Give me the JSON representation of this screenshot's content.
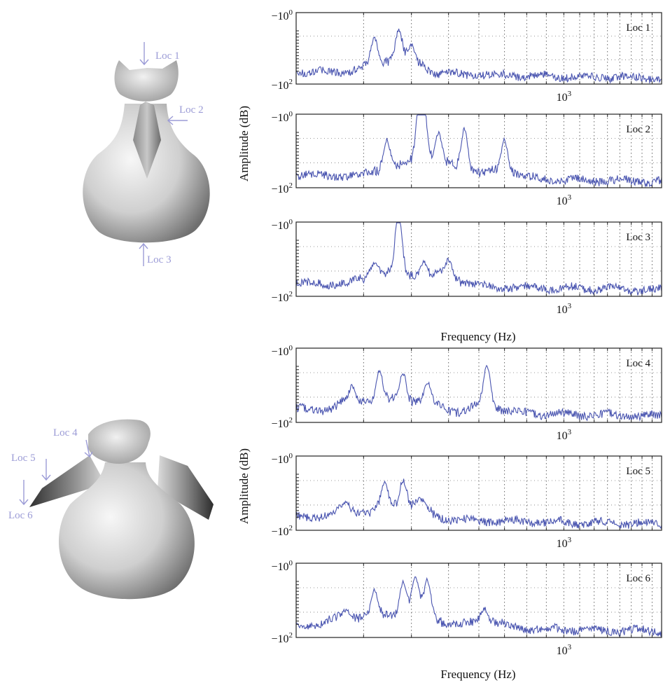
{
  "figure": {
    "top_group": {
      "ylabel": "Amplitude (dB)",
      "xlabel": "Frequency (Hz)",
      "shape_labels": [
        "Loc 1",
        "Loc 2",
        "Loc 3"
      ]
    },
    "bottom_group": {
      "ylabel": "Amplitude (dB)",
      "xlabel": "Frequency (Hz)",
      "shape_labels": [
        "Loc 4",
        "Loc 5",
        "Loc 6"
      ]
    }
  },
  "axis_ticks": {
    "y_top": {
      "base": "−10",
      "exp": "0"
    },
    "y_bottom": {
      "base": "−10",
      "exp": "2"
    },
    "x_major": {
      "base": "10",
      "exp": "3"
    }
  },
  "colors": {
    "trace": "#4a55b0",
    "annotation": "#9b9bd6",
    "axis": "#222222"
  },
  "chart_data": [
    {
      "type": "line",
      "title": "Loc 1",
      "x_scale": "log",
      "xlim": [
        200,
        1800
      ],
      "ylim": [
        -100,
        -1
      ],
      "y_scale": "log",
      "series": [
        {
          "peaks": [
            {
              "x": 320,
              "y": -10
            },
            {
              "x": 370,
              "y": -7
            },
            {
              "x": 400,
              "y": -15
            }
          ],
          "noise_floor": -70
        }
      ]
    },
    {
      "type": "line",
      "title": "Loc 2",
      "x_scale": "log",
      "xlim": [
        200,
        1800
      ],
      "ylim": [
        -100,
        -1
      ],
      "y_scale": "log",
      "series": [
        {
          "peaks": [
            {
              "x": 345,
              "y": -8
            },
            {
              "x": 420,
              "y": -1.5
            },
            {
              "x": 430,
              "y": -1
            },
            {
              "x": 470,
              "y": -6
            },
            {
              "x": 550,
              "y": -4
            },
            {
              "x": 700,
              "y": -8
            }
          ],
          "noise_floor": -70
        }
      ]
    },
    {
      "type": "line",
      "title": "Loc 3",
      "x_scale": "log",
      "xlim": [
        200,
        1800
      ],
      "ylim": [
        -100,
        -1
      ],
      "y_scale": "log",
      "series": [
        {
          "peaks": [
            {
              "x": 320,
              "y": -20
            },
            {
              "x": 370,
              "y": -1
            },
            {
              "x": 430,
              "y": -20
            },
            {
              "x": 500,
              "y": -18
            }
          ],
          "noise_floor": -70
        }
      ]
    },
    {
      "type": "line",
      "title": "Loc 4",
      "x_scale": "log",
      "xlim": [
        200,
        1800
      ],
      "ylim": [
        -100,
        -1
      ],
      "y_scale": "log",
      "series": [
        {
          "peaks": [
            {
              "x": 280,
              "y": -20
            },
            {
              "x": 330,
              "y": -8
            },
            {
              "x": 380,
              "y": -8
            },
            {
              "x": 440,
              "y": -15
            },
            {
              "x": 630,
              "y": -5
            }
          ],
          "noise_floor": -60
        }
      ]
    },
    {
      "type": "line",
      "title": "Loc 5",
      "x_scale": "log",
      "xlim": [
        200,
        1800
      ],
      "ylim": [
        -100,
        -1
      ],
      "y_scale": "log",
      "series": [
        {
          "peaks": [
            {
              "x": 270,
              "y": -30
            },
            {
              "x": 340,
              "y": -12
            },
            {
              "x": 380,
              "y": -9
            },
            {
              "x": 420,
              "y": -25
            }
          ],
          "noise_floor": -70
        }
      ]
    },
    {
      "type": "line",
      "title": "Loc 6",
      "x_scale": "log",
      "xlim": [
        200,
        1800
      ],
      "ylim": [
        -100,
        -1
      ],
      "y_scale": "log",
      "series": [
        {
          "peaks": [
            {
              "x": 270,
              "y": -30
            },
            {
              "x": 320,
              "y": -10
            },
            {
              "x": 380,
              "y": -8
            },
            {
              "x": 410,
              "y": -6
            },
            {
              "x": 440,
              "y": -5
            },
            {
              "x": 620,
              "y": -25
            }
          ],
          "noise_floor": -70
        }
      ]
    }
  ]
}
